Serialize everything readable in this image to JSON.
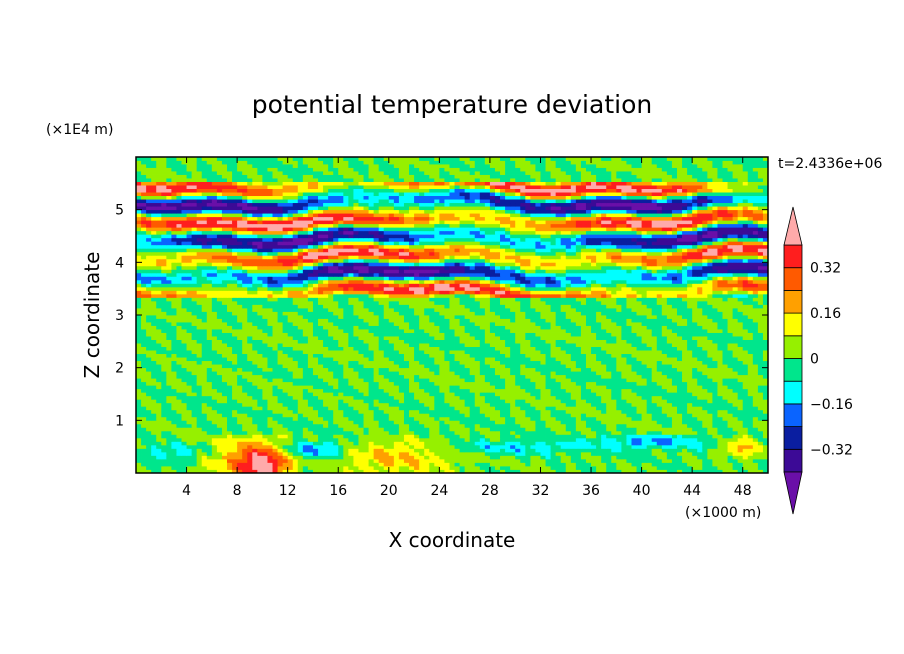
{
  "chart_data": {
    "type": "heatmap",
    "title": "potential temperature deviation",
    "xlabel": "X coordinate",
    "ylabel": "Z coordinate",
    "x_unit": "(×1000 m)",
    "y_unit": "(×1E4 m)",
    "time_label": "t=2.4336e+06",
    "xlim": [
      0,
      50
    ],
    "ylim": [
      0,
      6
    ],
    "x_ticks": [
      4,
      8,
      12,
      16,
      20,
      24,
      28,
      32,
      36,
      40,
      44,
      48
    ],
    "y_ticks": [
      1,
      2,
      3,
      4,
      5
    ],
    "colorbar": {
      "levels": [
        -0.4,
        -0.32,
        -0.24,
        -0.16,
        -0.08,
        0,
        0.08,
        0.16,
        0.24,
        0.32,
        0.4
      ],
      "tick_labels": [
        "0.32",
        "0.16",
        "0",
        "−0.16",
        "−0.32"
      ],
      "tick_values": [
        0.32,
        0.16,
        0,
        -0.16,
        -0.32
      ],
      "colors": [
        "#6a0fa8",
        "#3c0a96",
        "#0a1ea0",
        "#0a64ff",
        "#00ffff",
        "#00e68c",
        "#96f000",
        "#ffff00",
        "#ffa000",
        "#ff5a00",
        "#ff1e1e",
        "#ffaaaa"
      ],
      "extend": "both"
    },
    "features": [
      {
        "region": "lower layer z 0–0.7",
        "value": "warm patches near x≈10 (up to 0.32), x≈20, x≈48; cool patches near x≈14, x≈40"
      },
      {
        "region": "mid layer z 0.7–3.3",
        "value": "near zero, mixed -0.08 to 0.08"
      },
      {
        "region": "upper layer z 3.3–5.5",
        "value": "alternating horizontal bands of strong positive (pink/red) and negative (purple) deviation"
      },
      {
        "region": "top z 5.5–6",
        "value": "near zero"
      }
    ]
  }
}
